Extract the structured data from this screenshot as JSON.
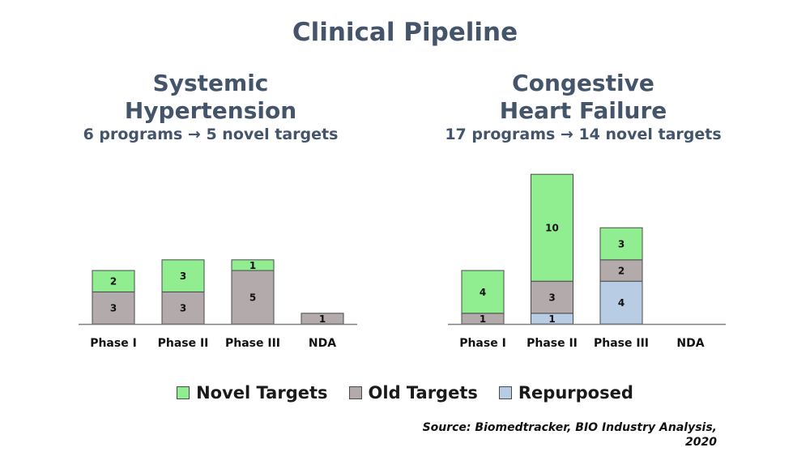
{
  "title": "Clinical Pipeline",
  "colors": {
    "novel": "#90ee90",
    "old": "#b3abab",
    "repurposed": "#b8cce4",
    "outline": "#4a4a4a"
  },
  "legend": [
    {
      "label": "Novel Targets",
      "color": "#90ee90"
    },
    {
      "label": "Old Targets",
      "color": "#b3abab"
    },
    {
      "label": "Repurposed",
      "color": "#b8cce4"
    }
  ],
  "source": {
    "line1": "Source: Biomedtracker,  BIO Industry Analysis,",
    "line2": "2020"
  },
  "chart_data": [
    {
      "type": "bar",
      "stacked": true,
      "title_line1": "Systemic",
      "title_line2": "Hypertension",
      "subtitle": "6 programs → 5 novel targets",
      "categories": [
        "Phase I",
        "Phase II",
        "Phase III",
        "NDA"
      ],
      "series": [
        {
          "key": "repurposed",
          "values": [
            0,
            0,
            0,
            0
          ]
        },
        {
          "key": "old",
          "values": [
            3,
            3,
            5,
            1
          ]
        },
        {
          "key": "novel",
          "values": [
            2,
            3,
            1,
            0
          ]
        }
      ],
      "ylim": [
        0,
        14
      ]
    },
    {
      "type": "bar",
      "stacked": true,
      "title_line1": "Congestive",
      "title_line2": "Heart Failure",
      "subtitle": "17 programs → 14 novel targets",
      "categories": [
        "Phase I",
        "Phase II",
        "Phase III",
        "NDA"
      ],
      "series": [
        {
          "key": "repurposed",
          "values": [
            0,
            1,
            4,
            0
          ]
        },
        {
          "key": "old",
          "values": [
            1,
            3,
            2,
            0
          ]
        },
        {
          "key": "novel",
          "values": [
            4,
            10,
            3,
            0
          ]
        }
      ],
      "ylim": [
        0,
        14
      ]
    }
  ]
}
